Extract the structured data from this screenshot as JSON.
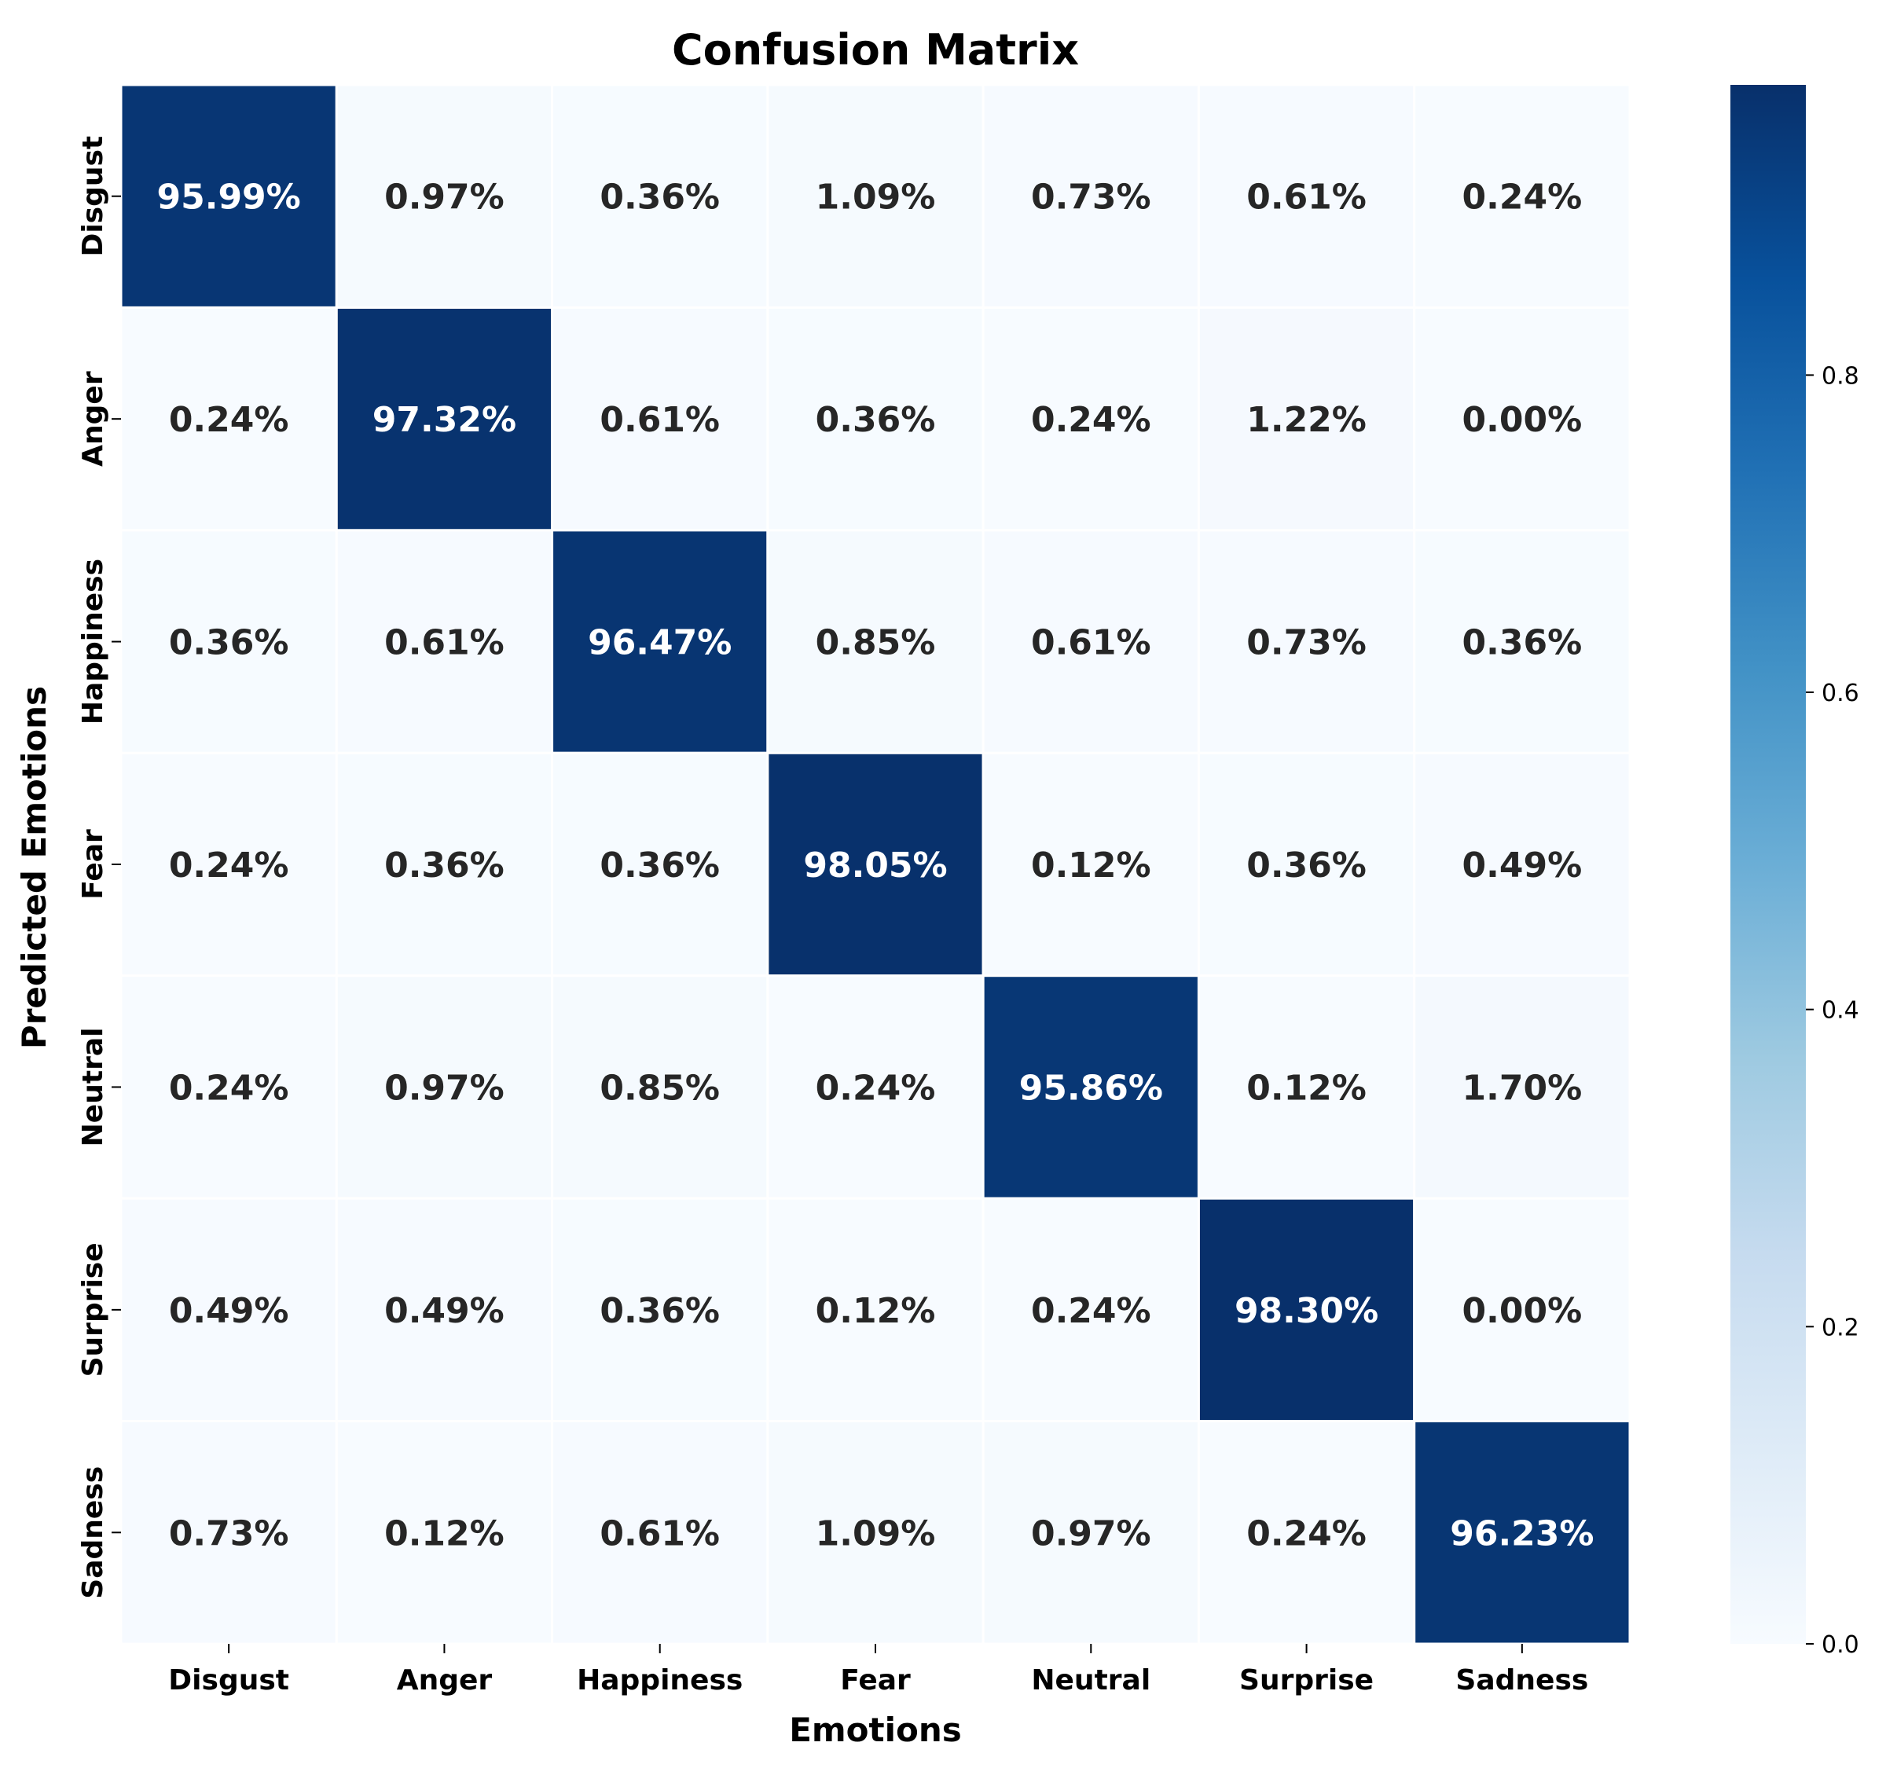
{
  "chart_data": {
    "type": "heatmap",
    "title": "Confusion Matrix",
    "xlabel": "Emotions",
    "ylabel": "Predicted Emotions",
    "x_categories": [
      "Disgust",
      "Anger",
      "Happiness",
      "Fear",
      "Neutral",
      "Surprise",
      "Sadness"
    ],
    "y_categories": [
      "Disgust",
      "Anger",
      "Happiness",
      "Fear",
      "Neutral",
      "Surprise",
      "Sadness"
    ],
    "values": [
      [
        95.99,
        0.97,
        0.36,
        1.09,
        0.73,
        0.61,
        0.24
      ],
      [
        0.24,
        97.32,
        0.61,
        0.36,
        0.24,
        1.22,
        0.0
      ],
      [
        0.36,
        0.61,
        96.47,
        0.85,
        0.61,
        0.73,
        0.36
      ],
      [
        0.24,
        0.36,
        0.36,
        98.05,
        0.12,
        0.36,
        0.49
      ],
      [
        0.24,
        0.97,
        0.85,
        0.24,
        95.86,
        0.12,
        1.7
      ],
      [
        0.49,
        0.49,
        0.36,
        0.12,
        0.24,
        98.3,
        0.0
      ],
      [
        0.73,
        0.12,
        0.61,
        1.09,
        0.97,
        0.24,
        96.23
      ]
    ],
    "value_format": "percent_2dp",
    "colormap": "Blues",
    "colorbar": {
      "range": [
        0.0,
        0.983
      ],
      "ticks": [
        0.0,
        0.2,
        0.4,
        0.6,
        0.8
      ],
      "tick_labels": [
        "0.0",
        "0.2",
        "0.4",
        "0.6",
        "0.8"
      ]
    },
    "colors": {
      "low": "#f7fbff",
      "high": "#08306b",
      "text_dark": "#262626",
      "text_light": "#ffffff",
      "grid": "#ffffff"
    }
  }
}
